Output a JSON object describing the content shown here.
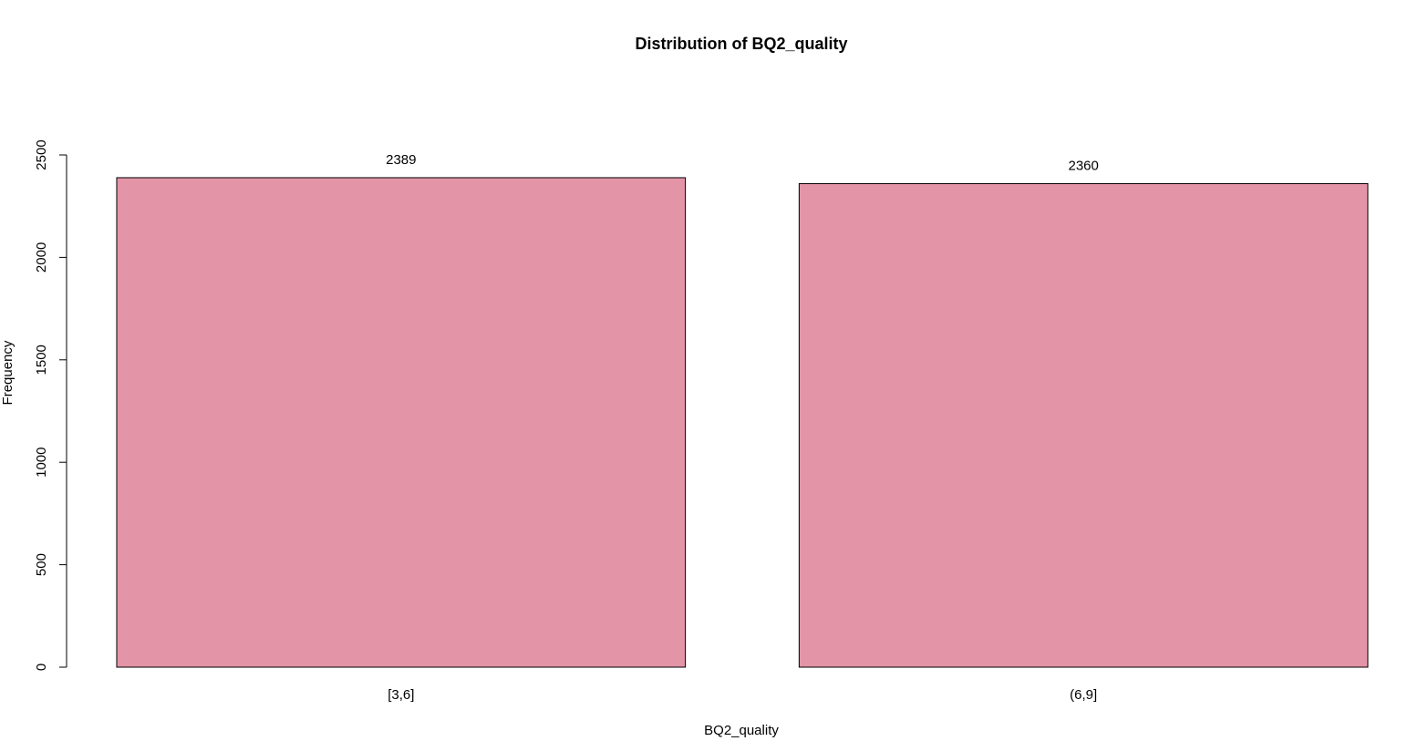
{
  "chart_data": {
    "type": "bar",
    "title": "Distribution of BQ2_quality",
    "xlabel": "BQ2_quality",
    "ylabel": "Frequency",
    "categories": [
      "[3,6]",
      "(6,9]"
    ],
    "values": [
      2389,
      2360
    ],
    "data_labels": [
      "2389",
      "2360"
    ],
    "ylim": [
      0,
      2500
    ],
    "yticks": [
      0,
      500,
      1000,
      1500,
      2000,
      2500
    ],
    "ytick_labels": [
      "0",
      "500",
      "1000",
      "1500",
      "2000",
      "2500"
    ],
    "bar_color": "#e394a7",
    "grid": false,
    "legend": "none"
  }
}
